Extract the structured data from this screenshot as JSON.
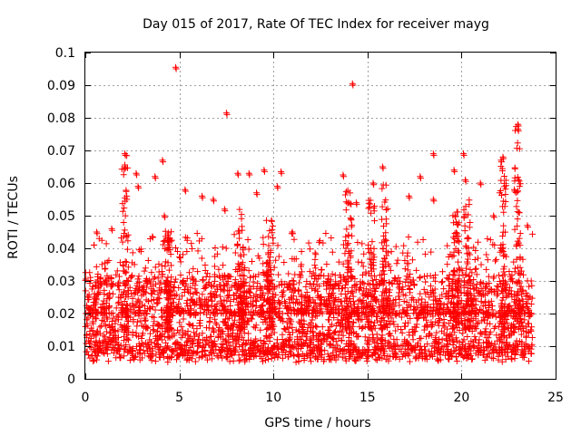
{
  "chart_data": {
    "type": "scatter",
    "title": "Day 015 of 2017, Rate Of TEC Index for receiver mayg",
    "xlabel": "GPS time / hours",
    "ylabel": "ROTI / TECUs",
    "xlim": [
      0,
      25
    ],
    "ylim": [
      0,
      0.1
    ],
    "grid": true,
    "marker": "plus",
    "marker_color": "#ff0000",
    "xticks": [
      0,
      5,
      10,
      15,
      20,
      25
    ],
    "xtick_labels": [
      "0",
      "5",
      "10",
      "15",
      "20",
      "25"
    ],
    "yticks": [
      0,
      0.01,
      0.02,
      0.03,
      0.04,
      0.05,
      0.06,
      0.07,
      0.08,
      0.09,
      0.1
    ],
    "ytick_labels": [
      "0",
      "0.01",
      "0.02",
      "0.03",
      "0.04",
      "0.05",
      "0.06",
      "0.07",
      "0.08",
      "0.09",
      "0.1"
    ],
    "series": [
      {
        "name": "ROTI",
        "x_range": [
          0,
          23.8
        ],
        "dense_band": [
          0.005,
          0.03
        ],
        "outliers": [
          {
            "x": 0.6,
            "y": 0.045
          },
          {
            "x": 1.4,
            "y": 0.046
          },
          {
            "x": 2.1,
            "y": 0.069
          },
          {
            "x": 2.1,
            "y": 0.065
          },
          {
            "x": 2.7,
            "y": 0.063
          },
          {
            "x": 2.8,
            "y": 0.059
          },
          {
            "x": 3.7,
            "y": 0.062
          },
          {
            "x": 4.1,
            "y": 0.067
          },
          {
            "x": 4.2,
            "y": 0.05
          },
          {
            "x": 4.8,
            "y": 0.0955
          },
          {
            "x": 5.3,
            "y": 0.058
          },
          {
            "x": 6.2,
            "y": 0.056
          },
          {
            "x": 6.8,
            "y": 0.055
          },
          {
            "x": 7.4,
            "y": 0.052
          },
          {
            "x": 7.5,
            "y": 0.0815
          },
          {
            "x": 8.1,
            "y": 0.063
          },
          {
            "x": 8.7,
            "y": 0.063
          },
          {
            "x": 9.1,
            "y": 0.057
          },
          {
            "x": 9.5,
            "y": 0.064
          },
          {
            "x": 10.2,
            "y": 0.059
          },
          {
            "x": 10.4,
            "y": 0.0635
          },
          {
            "x": 11.0,
            "y": 0.045
          },
          {
            "x": 13.7,
            "y": 0.0625
          },
          {
            "x": 14.2,
            "y": 0.0905
          },
          {
            "x": 14.4,
            "y": 0.054
          },
          {
            "x": 15.3,
            "y": 0.06
          },
          {
            "x": 15.8,
            "y": 0.065
          },
          {
            "x": 17.2,
            "y": 0.056
          },
          {
            "x": 17.8,
            "y": 0.062
          },
          {
            "x": 18.5,
            "y": 0.069
          },
          {
            "x": 18.5,
            "y": 0.055
          },
          {
            "x": 19.6,
            "y": 0.064
          },
          {
            "x": 20.1,
            "y": 0.069
          },
          {
            "x": 20.2,
            "y": 0.061
          },
          {
            "x": 21.0,
            "y": 0.06
          },
          {
            "x": 21.7,
            "y": 0.05
          },
          {
            "x": 22.1,
            "y": 0.067
          },
          {
            "x": 22.2,
            "y": 0.068
          },
          {
            "x": 22.8,
            "y": 0.058
          },
          {
            "x": 23.0,
            "y": 0.078
          },
          {
            "x": 23.0,
            "y": 0.0765
          },
          {
            "x": 23.5,
            "y": 0.047
          }
        ],
        "bursts": [
          {
            "x": 2.1,
            "peak": 0.069
          },
          {
            "x": 4.4,
            "peak": 0.046
          },
          {
            "x": 8.3,
            "peak": 0.052
          },
          {
            "x": 9.8,
            "peak": 0.049
          },
          {
            "x": 14.0,
            "peak": 0.058
          },
          {
            "x": 15.2,
            "peak": 0.055
          },
          {
            "x": 15.9,
            "peak": 0.06
          },
          {
            "x": 19.7,
            "peak": 0.052
          },
          {
            "x": 20.3,
            "peak": 0.058
          },
          {
            "x": 22.2,
            "peak": 0.067
          },
          {
            "x": 23.0,
            "peak": 0.078
          }
        ]
      }
    ]
  }
}
